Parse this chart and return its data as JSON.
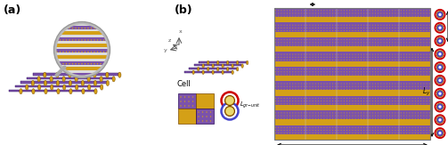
{
  "fig_width": 5.03,
  "fig_height": 1.63,
  "dpi": 100,
  "bg_color": "#ffffff",
  "label_a": "(a)",
  "label_b": "(b)",
  "purple": "#7B52AB",
  "gold": "#D4A017",
  "purple_dark": "#2a0a5a",
  "gold_dark": "#7a4800",
  "gray_rim": "#aaaaaa",
  "red": "#CC0000",
  "blue_circ": "#4444CC",
  "label_cell": "Cell"
}
